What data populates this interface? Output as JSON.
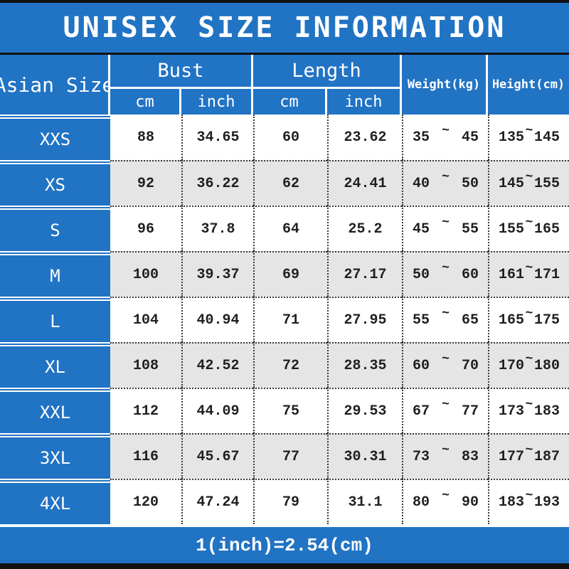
{
  "title": "UNISEX SIZE INFORMATION",
  "footer_note": "1(inch)=2.54(cm)",
  "colors": {
    "blue": "#2173c4",
    "row_shade": "#e6e5e6",
    "row_plain": "#ffffff",
    "bar_black": "#121212",
    "header_text": "#ffffff",
    "data_text": "#1f1f1f"
  },
  "table": {
    "size_col_header": "Asian Size",
    "groups": [
      {
        "label": "Bust",
        "sub": [
          "cm",
          "inch"
        ]
      },
      {
        "label": "Length",
        "sub": [
          "cm",
          "inch"
        ]
      }
    ],
    "weight_header": "Weight(kg)",
    "height_header": "Height(cm)",
    "tilde": "~",
    "rows": [
      {
        "size": "XXS",
        "bust_cm": "88",
        "bust_inch": "34.65",
        "length_cm": "60",
        "length_inch": "23.62",
        "weight_min": "35",
        "weight_max": "45",
        "height_min": "135",
        "height_max": "145"
      },
      {
        "size": "XS",
        "bust_cm": "92",
        "bust_inch": "36.22",
        "length_cm": "62",
        "length_inch": "24.41",
        "weight_min": "40",
        "weight_max": "50",
        "height_min": "145",
        "height_max": "155"
      },
      {
        "size": "S",
        "bust_cm": "96",
        "bust_inch": "37.8",
        "length_cm": "64",
        "length_inch": "25.2",
        "weight_min": "45",
        "weight_max": "55",
        "height_min": "155",
        "height_max": "165"
      },
      {
        "size": "M",
        "bust_cm": "100",
        "bust_inch": "39.37",
        "length_cm": "69",
        "length_inch": "27.17",
        "weight_min": "50",
        "weight_max": "60",
        "height_min": "161",
        "height_max": "171"
      },
      {
        "size": "L",
        "bust_cm": "104",
        "bust_inch": "40.94",
        "length_cm": "71",
        "length_inch": "27.95",
        "weight_min": "55",
        "weight_max": "65",
        "height_min": "165",
        "height_max": "175"
      },
      {
        "size": "XL",
        "bust_cm": "108",
        "bust_inch": "42.52",
        "length_cm": "72",
        "length_inch": "28.35",
        "weight_min": "60",
        "weight_max": "70",
        "height_min": "170",
        "height_max": "180"
      },
      {
        "size": "XXL",
        "bust_cm": "112",
        "bust_inch": "44.09",
        "length_cm": "75",
        "length_inch": "29.53",
        "weight_min": "67",
        "weight_max": "77",
        "height_min": "173",
        "height_max": "183"
      },
      {
        "size": "3XL",
        "bust_cm": "116",
        "bust_inch": "45.67",
        "length_cm": "77",
        "length_inch": "30.31",
        "weight_min": "73",
        "weight_max": "83",
        "height_min": "177",
        "height_max": "187"
      },
      {
        "size": "4XL",
        "bust_cm": "120",
        "bust_inch": "47.24",
        "length_cm": "79",
        "length_inch": "31.1",
        "weight_min": "80",
        "weight_max": "90",
        "height_min": "183",
        "height_max": "193"
      }
    ]
  }
}
